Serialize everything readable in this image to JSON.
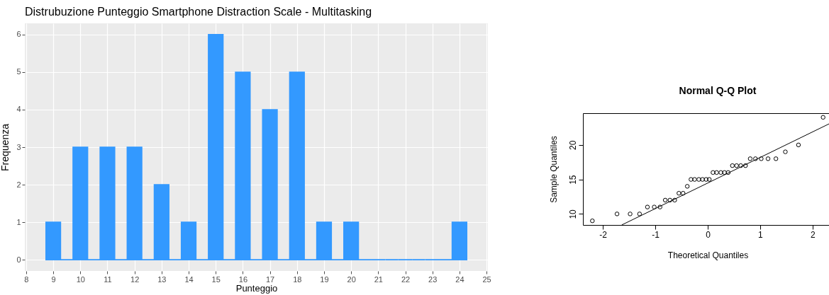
{
  "chart_data": [
    {
      "type": "histogram",
      "title": "Distrubuzione Punteggio Smartphone Distraction Scale - Multitasking",
      "xlabel": "Punteggio",
      "ylabel": "Frequenza",
      "bins": [
        8.73,
        9.27,
        9.73,
        10.27,
        10.73,
        11.27,
        11.73,
        12.27,
        12.73,
        13.27,
        13.73,
        14.27,
        14.73,
        15.27,
        15.73,
        16.27,
        16.73,
        17.27,
        17.73,
        18.27,
        18.73,
        19.27,
        19.73,
        20.27,
        20.73,
        21.27,
        21.73,
        22.27,
        22.73,
        23.27,
        23.73,
        24.27
      ],
      "values": [
        1,
        0,
        3,
        0,
        3,
        0,
        3,
        0,
        2,
        0,
        1,
        0,
        6,
        0,
        5,
        0,
        4,
        0,
        5,
        0,
        1,
        0,
        1,
        0,
        0,
        0,
        0,
        0,
        0,
        0,
        1
      ],
      "color": "#3399ff",
      "xlim": [
        7.95,
        25.05
      ],
      "ylim": [
        -0.3,
        6.3
      ],
      "xticks": [
        8,
        9,
        10,
        11,
        12,
        13,
        14,
        15,
        16,
        17,
        18,
        19,
        20,
        21,
        22,
        23,
        24,
        25
      ],
      "yticks": [
        0,
        1,
        2,
        3,
        4,
        5,
        6
      ],
      "grid": true
    },
    {
      "type": "scatter",
      "title": "Normal Q-Q Plot",
      "xlabel": "Theoretical Quantiles",
      "ylabel": "Sample Quantiles",
      "grid": false,
      "xlim": [
        -2.38,
        2.38
      ],
      "ylim": [
        8.4,
        24.6
      ],
      "xticks": [
        -2,
        -1,
        0,
        1,
        2
      ],
      "yticks": [
        10,
        15,
        20
      ],
      "series": [
        {
          "type": "scatter",
          "marker": "circle",
          "color": "#000000",
          "x": [
            -2.2,
            -1.73,
            -1.48,
            -1.3,
            -1.15,
            -1.02,
            -0.91,
            -0.81,
            -0.72,
            -0.63,
            -0.55,
            -0.47,
            -0.39,
            -0.32,
            -0.25,
            -0.17,
            -0.1,
            -0.03,
            0.03,
            0.1,
            0.17,
            0.25,
            0.32,
            0.39,
            0.47,
            0.55,
            0.63,
            0.72,
            0.81,
            0.91,
            1.02,
            1.15,
            1.3,
            1.48,
            1.73,
            2.2
          ],
          "values": [
            9,
            10,
            10,
            10,
            11,
            11,
            11,
            12,
            12,
            12,
            13,
            13,
            14,
            15,
            15,
            15,
            15,
            15,
            15,
            16,
            16,
            16,
            16,
            16,
            17,
            17,
            17,
            17,
            18,
            18,
            18,
            18,
            18,
            19,
            20,
            24
          ]
        },
        {
          "type": "line",
          "color": "#000000",
          "x": [
            -1.64,
            2.38
          ],
          "values": [
            8.4,
            23.3
          ]
        }
      ]
    }
  ]
}
